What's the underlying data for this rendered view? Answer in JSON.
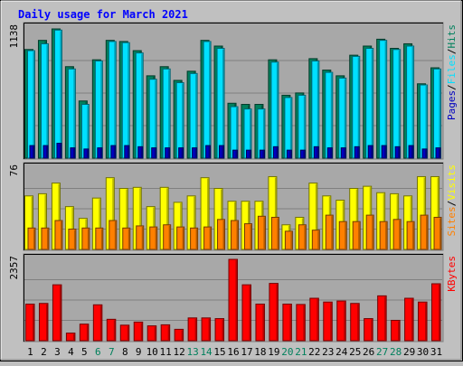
{
  "chart_data": {
    "type": "bar",
    "title": "Daily usage for March 2021",
    "categories": [
      "1",
      "2",
      "3",
      "4",
      "5",
      "6",
      "7",
      "8",
      "9",
      "10",
      "11",
      "12",
      "13",
      "14",
      "15",
      "16",
      "17",
      "18",
      "19",
      "20",
      "21",
      "22",
      "23",
      "24",
      "25",
      "26",
      "27",
      "28",
      "29",
      "30",
      "31"
    ],
    "weekend_days": [
      "6",
      "7",
      "13",
      "14",
      "20",
      "21",
      "27",
      "28"
    ],
    "colors": {
      "hits": "#00805c",
      "files": "#00e0ff",
      "pages": "#0000c0",
      "visits": "#ffff00",
      "sites": "#ff8000",
      "kbytes": "#ff0000",
      "background": "#c0c0c0",
      "plot_background": "#a8a8a8",
      "title_text": "#0000ff",
      "weekend_text": "#00805c",
      "grid": "#808080"
    },
    "panels": [
      {
        "id": "hits-files-pages",
        "ymax_label": "1138",
        "ylim": [
          0,
          1138
        ],
        "legend": [
          {
            "key": "pages",
            "label": "Pages"
          },
          {
            "key": "files",
            "label": "Files"
          },
          {
            "key": "hits",
            "label": "Hits"
          }
        ],
        "series": [
          {
            "key": "hits",
            "name": "Hits",
            "values": [
              950,
              1030,
              1130,
              800,
              500,
              860,
              1030,
              1020,
              940,
              720,
              800,
              680,
              760,
              1030,
              980,
              480,
              470,
              470,
              860,
              550,
              570,
              870,
              770,
              720,
              900,
              980,
              1040,
              960,
              1000,
              650,
              790
            ]
          },
          {
            "key": "files",
            "name": "Files",
            "values": [
              940,
              1000,
              1120,
              780,
              470,
              850,
              1020,
              1010,
              920,
              690,
              780,
              660,
              740,
              1020,
              960,
              450,
              430,
              430,
              840,
              530,
              550,
              850,
              750,
              700,
              890,
              960,
              1030,
              950,
              980,
              640,
              780
            ]
          },
          {
            "key": "pages",
            "name": "Pages",
            "values": [
              110,
              110,
              130,
              90,
              80,
              90,
              110,
              110,
              100,
              90,
              90,
              90,
              90,
              110,
              110,
              70,
              70,
              70,
              100,
              70,
              70,
              100,
              90,
              90,
              100,
              110,
              110,
              100,
              110,
              80,
              90
            ]
          }
        ]
      },
      {
        "id": "visits-sites",
        "ymax_label": "76",
        "ylim": [
          0,
          76
        ],
        "legend": [
          {
            "key": "sites",
            "label": "Sites"
          },
          {
            "key": "visits",
            "label": "Visits"
          }
        ],
        "series": [
          {
            "key": "visits",
            "name": "Visits",
            "values": [
              50,
              52,
              62,
              40,
              29,
              48,
              67,
              57,
              58,
              40,
              58,
              44,
              50,
              67,
              57,
              45,
              45,
              45,
              68,
              23,
              30,
              62,
              50,
              46,
              57,
              59,
              53,
              52,
              50,
              68,
              68
            ]
          },
          {
            "key": "sites",
            "name": "Sites",
            "values": [
              20,
              20,
              27,
              19,
              20,
              20,
              27,
              20,
              22,
              21,
              23,
              21,
              20,
              21,
              28,
              27,
              24,
              31,
              30,
              17,
              23,
              18,
              32,
              26,
              26,
              32,
              26,
              28,
              26,
              32,
              30
            ]
          }
        ]
      },
      {
        "id": "kbytes",
        "ymax_label": "2357",
        "ylim": [
          0,
          2357
        ],
        "legend": [
          {
            "key": "kbytes",
            "label": "KBytes"
          }
        ],
        "series": [
          {
            "key": "kbytes",
            "name": "KBytes",
            "values": [
              1060,
              1080,
              1620,
              220,
              480,
              1040,
              620,
              450,
              540,
              430,
              460,
              330,
              660,
              660,
              640,
              2357,
              1620,
              1060,
              1660,
              1060,
              1050,
              1230,
              1120,
              1150,
              1080,
              640,
              1300,
              590,
              1230,
              1120,
              1650
            ]
          }
        ]
      }
    ]
  }
}
